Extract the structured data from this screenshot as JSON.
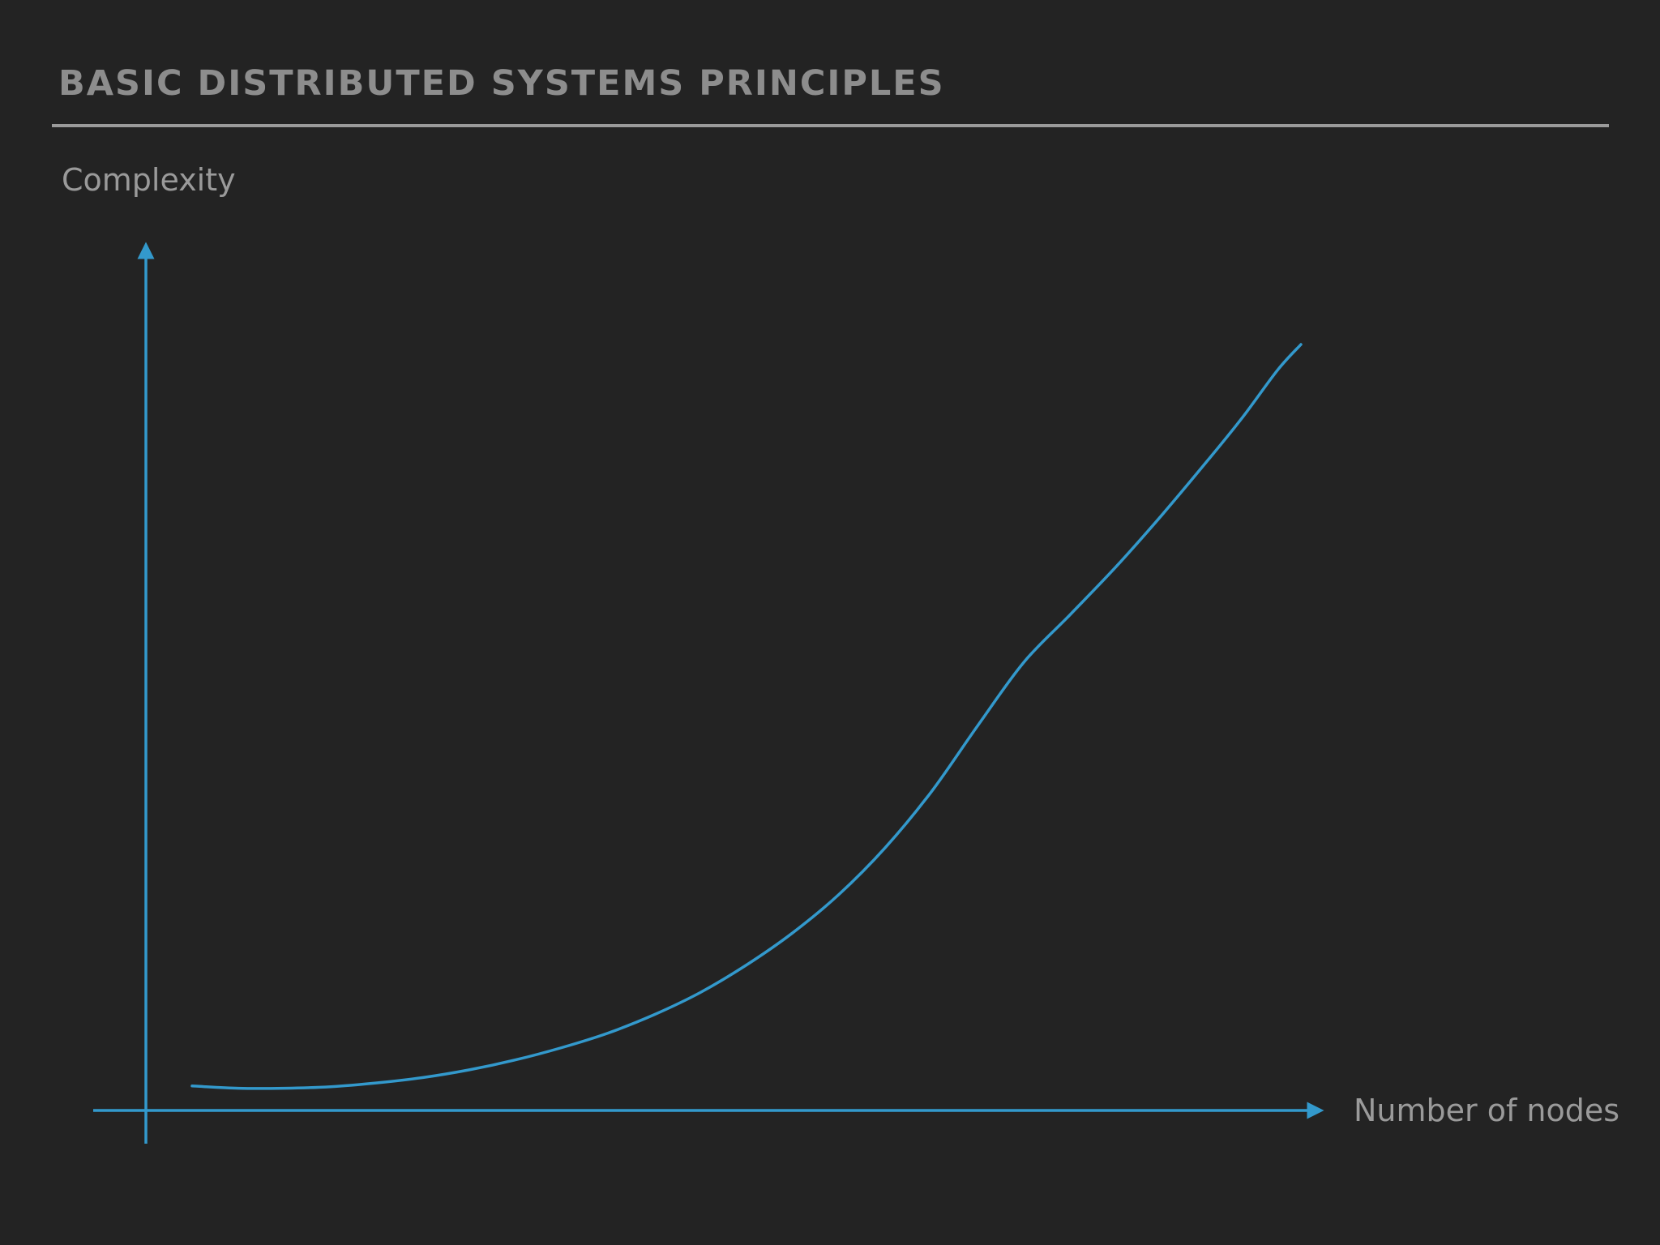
{
  "slide": {
    "title": "BASIC DISTRIBUTED SYSTEMS PRINCIPLES"
  },
  "colors": {
    "background": "#232323",
    "accent": "#3399cc",
    "title_text": "#8d8d8d",
    "label_text": "#9a9a9a",
    "rule": "#9a9a9a"
  },
  "chart_data": {
    "type": "line",
    "title": "",
    "xlabel": "Number of nodes",
    "ylabel": "Complexity",
    "xlim": [
      0,
      100
    ],
    "ylim": [
      0,
      100
    ],
    "grid": false,
    "legend": "none",
    "series": [
      {
        "x": [
          4,
          8,
          12,
          16,
          20,
          24,
          28,
          32,
          36,
          40,
          44,
          48,
          52,
          56,
          60,
          64,
          68,
          72,
          76,
          80,
          84,
          88,
          92,
          95,
          98,
          100
        ],
        "values": [
          3.2,
          2.9,
          2.9,
          3.1,
          3.6,
          4.3,
          5.3,
          6.6,
          8.2,
          10.1,
          12.5,
          15.4,
          19.0,
          23.2,
          28.2,
          34.3,
          41.6,
          50.2,
          58.5,
          64.7,
          71.0,
          77.8,
          85.0,
          90.6,
          96.7,
          100
        ]
      }
    ]
  }
}
